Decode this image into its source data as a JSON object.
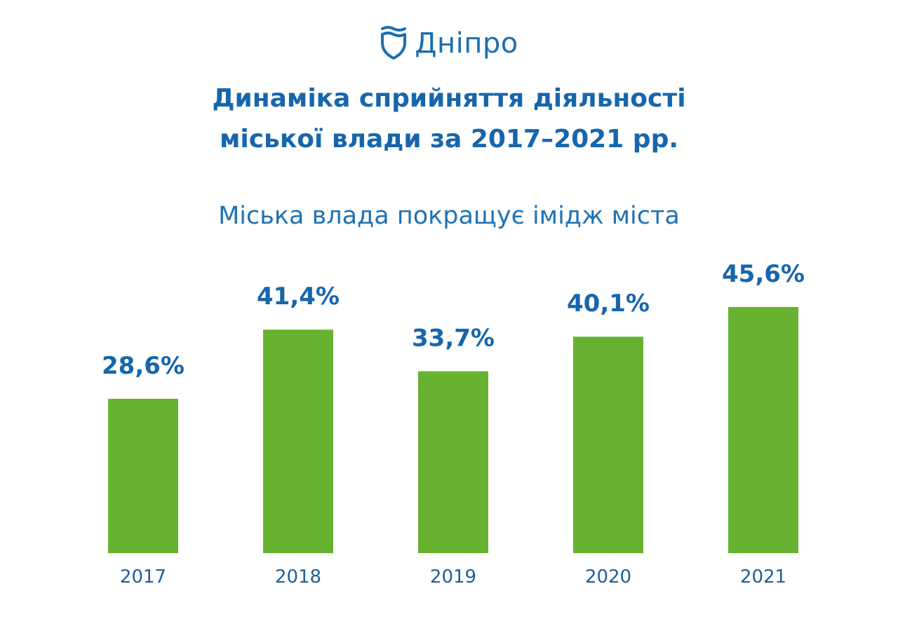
{
  "logo": {
    "text": "Дніпро",
    "icon": "shield-wave-icon",
    "color": "#1a6fb0"
  },
  "header": {
    "title_line1": "Динаміка сприйняття діяльності",
    "title_line2": "міської влади за 2017–2021 рр.",
    "subtitle": "Міська влада покращує імідж міста"
  },
  "colors": {
    "bar": "#67b230",
    "value_label": "#1766ac",
    "category_label": "#1f5f98"
  },
  "chart_data": {
    "type": "bar",
    "categories": [
      "2017",
      "2018",
      "2019",
      "2020",
      "2021"
    ],
    "values": [
      28.6,
      41.4,
      33.7,
      40.1,
      45.6
    ],
    "value_labels": [
      "28,6%",
      "41,4%",
      "33,7%",
      "40,1%",
      "45,6%"
    ],
    "title": "Міська влада покращує імідж міста",
    "xlabel": "",
    "ylabel": "",
    "ylim": [
      0,
      50
    ],
    "grid": false,
    "legend": "none"
  }
}
